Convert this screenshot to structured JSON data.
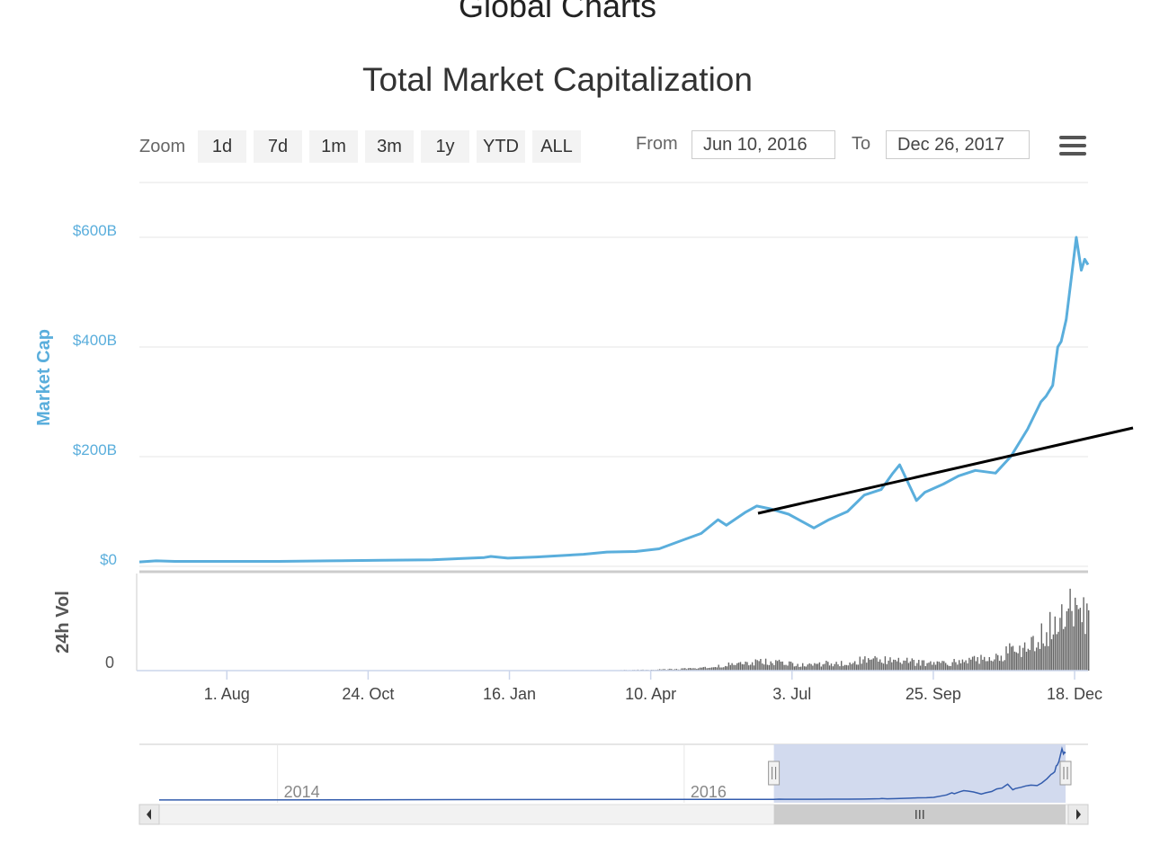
{
  "page": {
    "title": "Global Charts"
  },
  "toolbar": {
    "zoom_label": "Zoom",
    "zoom_buttons": [
      "1d",
      "7d",
      "1m",
      "3m",
      "1y",
      "YTD",
      "ALL"
    ],
    "from_label": "From",
    "from_value": "Jun 10, 2016",
    "to_label": "To",
    "to_value": "Dec 26, 2017",
    "menu_icon": "hamburger-menu-icon"
  },
  "colors": {
    "market_cap_line": "#5aaedc",
    "volume_bars": "#666666",
    "navigator_line": "#335cad",
    "navigator_mask": "#cdd6ec",
    "trend_line": "#000000"
  },
  "chart_data": {
    "type": "line",
    "title": "Total Market Capitalization",
    "x_range": [
      "2016-06-10",
      "2017-12-26"
    ],
    "x_tick_labels": [
      "1. Aug",
      "24. Oct",
      "16. Jan",
      "10. Apr",
      "3. Jul",
      "25. Sep",
      "18. Dec"
    ],
    "x_ticks": [
      "2016-08-01",
      "2016-10-24",
      "2017-01-16",
      "2017-04-10",
      "2017-07-03",
      "2017-09-25",
      "2017-12-18"
    ],
    "market_cap": {
      "ylabel": "Market Cap",
      "y_tick_labels": [
        "$0",
        "$200B",
        "$400B",
        "$600B"
      ],
      "y_ticks": [
        0,
        200,
        400,
        600
      ],
      "unit": "B",
      "ylim": [
        0,
        700
      ],
      "x": [
        "2016-06-10",
        "2016-06-20",
        "2016-07-01",
        "2016-08-01",
        "2016-09-01",
        "2016-10-01",
        "2016-11-01",
        "2016-12-01",
        "2017-01-01",
        "2017-01-05",
        "2017-01-15",
        "2017-02-01",
        "2017-03-01",
        "2017-03-15",
        "2017-04-01",
        "2017-04-15",
        "2017-05-01",
        "2017-05-10",
        "2017-05-20",
        "2017-05-25",
        "2017-06-05",
        "2017-06-12",
        "2017-06-20",
        "2017-07-01",
        "2017-07-10",
        "2017-07-16",
        "2017-07-25",
        "2017-08-05",
        "2017-08-15",
        "2017-08-25",
        "2017-09-01",
        "2017-09-05",
        "2017-09-15",
        "2017-09-20",
        "2017-10-01",
        "2017-10-10",
        "2017-10-20",
        "2017-11-01",
        "2017-11-10",
        "2017-11-20",
        "2017-11-28",
        "2017-12-01",
        "2017-12-05",
        "2017-12-08",
        "2017-12-10",
        "2017-12-13",
        "2017-12-17",
        "2017-12-19",
        "2017-12-22",
        "2017-12-24",
        "2017-12-26"
      ],
      "values": [
        8,
        10,
        9,
        9,
        9,
        10,
        11,
        12,
        16,
        18,
        15,
        17,
        22,
        26,
        27,
        32,
        50,
        60,
        85,
        75,
        98,
        110,
        105,
        95,
        80,
        70,
        85,
        100,
        130,
        140,
        170,
        185,
        120,
        135,
        150,
        165,
        175,
        170,
        200,
        250,
        300,
        310,
        330,
        400,
        410,
        450,
        550,
        600,
        540,
        560,
        550
      ]
    },
    "volume_24h": {
      "ylabel": "24h Vol",
      "y_tick_labels": [
        "0"
      ],
      "y_ticks": [
        0
      ],
      "ylim": [
        0,
        30
      ],
      "x": [
        "2016-06-10",
        "2016-07-01",
        "2016-08-01",
        "2016-09-01",
        "2016-10-01",
        "2016-11-01",
        "2016-12-01",
        "2017-01-01",
        "2017-02-01",
        "2017-03-01",
        "2017-04-01",
        "2017-04-15",
        "2017-05-01",
        "2017-05-15",
        "2017-06-01",
        "2017-06-15",
        "2017-07-01",
        "2017-07-15",
        "2017-08-01",
        "2017-08-15",
        "2017-09-01",
        "2017-09-15",
        "2017-10-01",
        "2017-10-15",
        "2017-11-01",
        "2017-11-10",
        "2017-11-20",
        "2017-11-28",
        "2017-12-05",
        "2017-12-10",
        "2017-12-15",
        "2017-12-18",
        "2017-12-22",
        "2017-12-26"
      ],
      "values": [
        0,
        0,
        0,
        0,
        0,
        0,
        0,
        0,
        0,
        0,
        0.2,
        0.3,
        0.6,
        1.2,
        2.2,
        2.6,
        2.2,
        1.8,
        2.5,
        3.2,
        3.6,
        2.4,
        2.2,
        3.0,
        4.5,
        6,
        8,
        11,
        14,
        17,
        20,
        27,
        19,
        13
      ]
    },
    "navigator": {
      "year_labels": [
        "2014",
        "2016"
      ],
      "x_range": [
        "2013-04-28",
        "2017-12-26"
      ]
    }
  }
}
